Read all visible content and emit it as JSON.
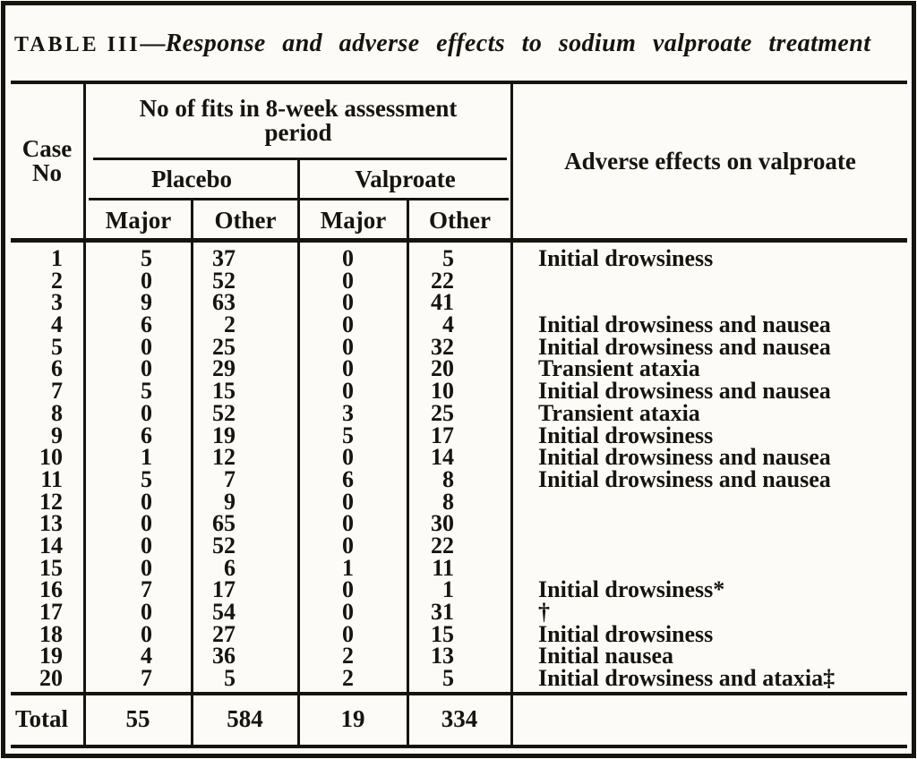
{
  "title": {
    "label": "TABLE III",
    "dash": "—",
    "text": "Response and adverse effects to sodium valproate treatment"
  },
  "header": {
    "case": [
      "Case",
      "No"
    ],
    "fits_group": [
      "No of fits in 8-week assessment",
      "period"
    ],
    "placebo": "Placebo",
    "valproate": "Valproate",
    "placebo_sub": [
      "Major",
      "Other"
    ],
    "valproate_sub": [
      "Major",
      "Other"
    ],
    "adverse": "Adverse effects on valproate"
  },
  "rows": [
    {
      "case_no": "1",
      "placebo_major": "5",
      "placebo_other": "37",
      "valproate_major": "0",
      "valproate_other": "5",
      "adverse": "Initial drowsiness"
    },
    {
      "case_no": "2",
      "placebo_major": "0",
      "placebo_other": "52",
      "valproate_major": "0",
      "valproate_other": "22",
      "adverse": ""
    },
    {
      "case_no": "3",
      "placebo_major": "9",
      "placebo_other": "63",
      "valproate_major": "0",
      "valproate_other": "41",
      "adverse": ""
    },
    {
      "case_no": "4",
      "placebo_major": "6",
      "placebo_other": "2",
      "valproate_major": "0",
      "valproate_other": "4",
      "adverse": "Initial drowsiness and nausea"
    },
    {
      "case_no": "5",
      "placebo_major": "0",
      "placebo_other": "25",
      "valproate_major": "0",
      "valproate_other": "32",
      "adverse": "Initial drowsiness and nausea"
    },
    {
      "case_no": "6",
      "placebo_major": "0",
      "placebo_other": "29",
      "valproate_major": "0",
      "valproate_other": "20",
      "adverse": "Transient ataxia"
    },
    {
      "case_no": "7",
      "placebo_major": "5",
      "placebo_other": "15",
      "valproate_major": "0",
      "valproate_other": "10",
      "adverse": "Initial drowsiness and nausea"
    },
    {
      "case_no": "8",
      "placebo_major": "0",
      "placebo_other": "52",
      "valproate_major": "3",
      "valproate_other": "25",
      "adverse": "Transient ataxia"
    },
    {
      "case_no": "9",
      "placebo_major": "6",
      "placebo_other": "19",
      "valproate_major": "5",
      "valproate_other": "17",
      "adverse": "Initial drowsiness"
    },
    {
      "case_no": "10",
      "placebo_major": "1",
      "placebo_other": "12",
      "valproate_major": "0",
      "valproate_other": "14",
      "adverse": "Initial drowsiness and nausea"
    },
    {
      "case_no": "11",
      "placebo_major": "5",
      "placebo_other": "7",
      "valproate_major": "6",
      "valproate_other": "8",
      "adverse": "Initial drowsiness and nausea"
    },
    {
      "case_no": "12",
      "placebo_major": "0",
      "placebo_other": "9",
      "valproate_major": "0",
      "valproate_other": "8",
      "adverse": ""
    },
    {
      "case_no": "13",
      "placebo_major": "0",
      "placebo_other": "65",
      "valproate_major": "0",
      "valproate_other": "30",
      "adverse": ""
    },
    {
      "case_no": "14",
      "placebo_major": "0",
      "placebo_other": "52",
      "valproate_major": "0",
      "valproate_other": "22",
      "adverse": ""
    },
    {
      "case_no": "15",
      "placebo_major": "0",
      "placebo_other": "6",
      "valproate_major": "1",
      "valproate_other": "11",
      "adverse": ""
    },
    {
      "case_no": "16",
      "placebo_major": "7",
      "placebo_other": "17",
      "valproate_major": "0",
      "valproate_other": "1",
      "adverse": "Initial drowsiness*"
    },
    {
      "case_no": "17",
      "placebo_major": "0",
      "placebo_other": "54",
      "valproate_major": "0",
      "valproate_other": "31",
      "adverse": "†"
    },
    {
      "case_no": "18",
      "placebo_major": "0",
      "placebo_other": "27",
      "valproate_major": "0",
      "valproate_other": "15",
      "adverse": "Initial drowsiness"
    },
    {
      "case_no": "19",
      "placebo_major": "4",
      "placebo_other": "36",
      "valproate_major": "2",
      "valproate_other": "13",
      "adverse": "Initial nausea"
    },
    {
      "case_no": "20",
      "placebo_major": "7",
      "placebo_other": "5",
      "valproate_major": "2",
      "valproate_other": "5",
      "adverse": "Initial drowsiness and ataxia‡"
    }
  ],
  "total": {
    "label": "Total",
    "placebo_major": "55",
    "placebo_other": "584",
    "valproate_major": "19",
    "valproate_other": "334"
  },
  "colors": {
    "ink": "#17140e",
    "paper": "#fcfbf8"
  }
}
